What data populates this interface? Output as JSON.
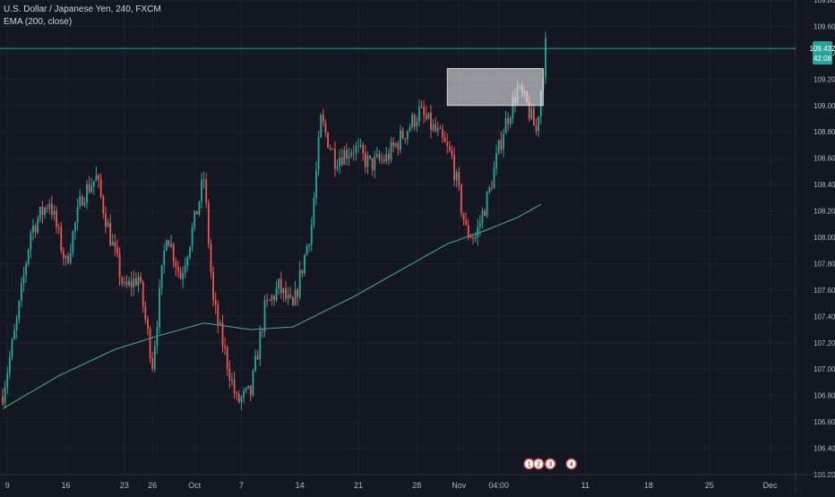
{
  "header": {
    "symbol_line": "U.S. Dollar / Japanese Yen, 240, FXCM",
    "indicator_line": "EMA (200, close)"
  },
  "colors": {
    "background": "#131722",
    "grid": "#1e222d",
    "up": "#26a69a",
    "down": "#ef5350",
    "ema": "#4caf8a",
    "price_line": "#26a69a",
    "axis_text": "#b2b5be",
    "zone_fill": "#ffffff"
  },
  "chart_data": {
    "type": "candlestick",
    "symbol": "U.S. Dollar / Japanese Yen",
    "interval": "240",
    "exchange": "FXCM",
    "ylim": [
      106.2,
      109.8
    ],
    "y_ticks": [
      106.2,
      106.4,
      106.6,
      106.8,
      107.0,
      107.2,
      107.4,
      107.6,
      107.8,
      108.0,
      108.2,
      108.4,
      108.6,
      108.8,
      109.0,
      109.2,
      109.4,
      109.6,
      109.8
    ],
    "y_tick_labels": [
      "106.200",
      "106.400",
      "106.600",
      "106.800",
      "107.000",
      "107.200",
      "107.400",
      "107.600",
      "107.800",
      "108.000",
      "108.200",
      "108.400",
      "108.600",
      "108.800",
      "109.000",
      "109.200",
      "109.400",
      "109.600",
      "109.800"
    ],
    "x_ticks": [
      "9",
      "16",
      "23",
      "26",
      "Oct",
      "7",
      "14",
      "21",
      "28",
      "Nov",
      "04:00",
      "11",
      "18",
      "25",
      "Dec"
    ],
    "x_tick_bars": [
      2,
      27,
      52,
      64,
      82,
      102,
      127,
      152,
      177,
      195,
      212,
      249,
      276,
      302,
      328
    ],
    "x_bar_range": [
      0,
      340
    ],
    "current_price": 109.432,
    "current_price_label": "109.432",
    "countdown_label": "42:08",
    "ema_period": 200,
    "path_anchors": [
      [
        0,
        106.82
      ],
      [
        6,
        107.35
      ],
      [
        12,
        108.05
      ],
      [
        20,
        108.28
      ],
      [
        27,
        107.8
      ],
      [
        34,
        108.32
      ],
      [
        40,
        108.45
      ],
      [
        46,
        108.0
      ],
      [
        52,
        107.6
      ],
      [
        58,
        107.7
      ],
      [
        64,
        107.05
      ],
      [
        70,
        108.05
      ],
      [
        76,
        107.7
      ],
      [
        82,
        108.12
      ],
      [
        86,
        108.45
      ],
      [
        90,
        107.5
      ],
      [
        96,
        107.05
      ],
      [
        100,
        106.75
      ],
      [
        106,
        106.82
      ],
      [
        112,
        107.45
      ],
      [
        118,
        107.62
      ],
      [
        124,
        107.45
      ],
      [
        132,
        108.1
      ],
      [
        136,
        108.88
      ],
      [
        142,
        108.6
      ],
      [
        150,
        108.68
      ],
      [
        157,
        108.55
      ],
      [
        164,
        108.6
      ],
      [
        172,
        108.8
      ],
      [
        178,
        108.95
      ],
      [
        186,
        108.78
      ],
      [
        192,
        108.6
      ],
      [
        198,
        108.05
      ],
      [
        202,
        108.0
      ],
      [
        208,
        108.35
      ],
      [
        214,
        108.82
      ],
      [
        220,
        109.12
      ],
      [
        224,
        109.0
      ],
      [
        228,
        108.8
      ],
      [
        232,
        109.45
      ]
    ],
    "ema_anchors": [
      [
        0,
        106.7
      ],
      [
        24,
        106.95
      ],
      [
        48,
        107.15
      ],
      [
        66,
        107.25
      ],
      [
        86,
        107.35
      ],
      [
        106,
        107.3
      ],
      [
        124,
        107.32
      ],
      [
        150,
        107.55
      ],
      [
        170,
        107.75
      ],
      [
        190,
        107.95
      ],
      [
        206,
        108.05
      ],
      [
        220,
        108.15
      ],
      [
        230,
        108.25
      ]
    ],
    "annotations": [
      {
        "type": "rectangle",
        "x_start": 190,
        "x_end": 231,
        "y_low": 109.0,
        "y_high": 109.28
      }
    ],
    "event_markers": [
      "1",
      "2",
      "3",
      "4"
    ],
    "grid": true,
    "legend": "top-left"
  }
}
